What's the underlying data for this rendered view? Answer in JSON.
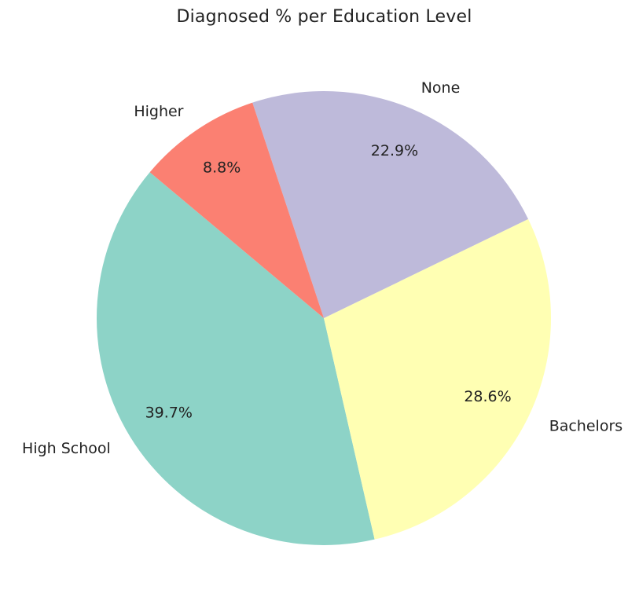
{
  "chart_data": {
    "type": "pie",
    "title": "Diagnosed % per Education Level",
    "slices": [
      {
        "label": "High School",
        "value": 39.7,
        "pct_text": "39.7%",
        "color": "#8dd3c7"
      },
      {
        "label": "Bachelors",
        "value": 28.6,
        "pct_text": "28.6%",
        "color": "#ffffb3"
      },
      {
        "label": "None",
        "value": 22.9,
        "pct_text": "22.9%",
        "color": "#bebada"
      },
      {
        "label": "Higher",
        "value": 8.8,
        "pct_text": "8.8%",
        "color": "#fb8072"
      }
    ],
    "start_angle_deg": 140,
    "direction": "counterclockwise"
  }
}
